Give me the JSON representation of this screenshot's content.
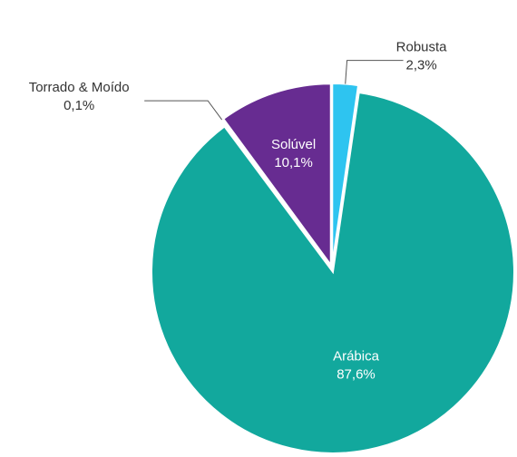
{
  "chart_data": {
    "type": "pie",
    "title": "",
    "slices": [
      {
        "label": "Robusta",
        "value": 2.3,
        "value_label": "2,3%",
        "color": "#2EC4F0"
      },
      {
        "label": "Arábica",
        "value": 87.6,
        "value_label": "87,6%",
        "color": "#12A89D"
      },
      {
        "label": "Torrado & Moído",
        "value": 0.1,
        "value_label": "0,1%",
        "color": "#5B2A86"
      },
      {
        "label": "Solúvel",
        "value": 10.1,
        "value_label": "10,1%",
        "color": "#672C91"
      }
    ],
    "start_angle": "12 o'clock",
    "direction": "clockwise",
    "exploded": true,
    "legend": "none"
  }
}
